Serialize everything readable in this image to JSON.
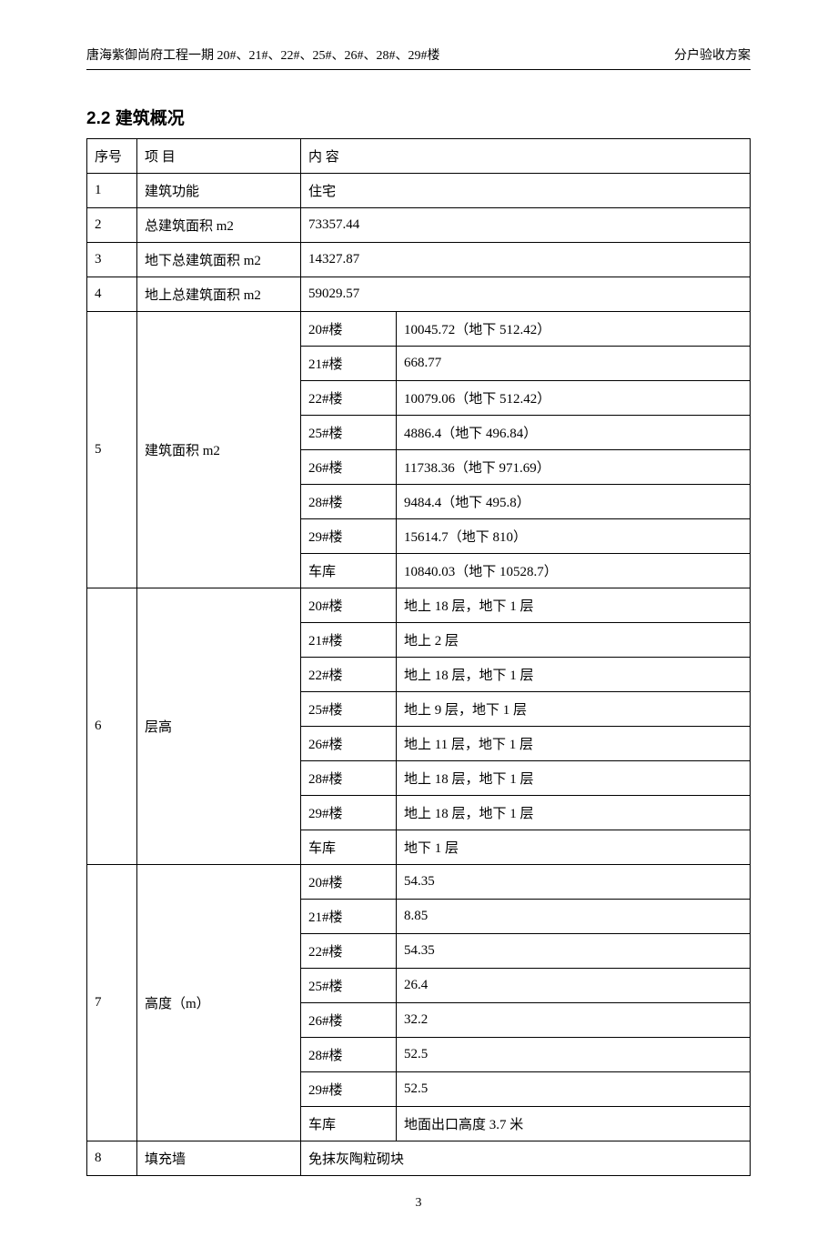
{
  "header": {
    "left": "唐海紫御尚府工程一期 20#、21#、22#、25#、26#、28#、29#楼",
    "right": "分户验收方案"
  },
  "section_title": "2.2 建筑概况",
  "table": {
    "col_headers": {
      "seq": "序号",
      "item": "项 目",
      "content": "内  容"
    },
    "rows_simple": [
      {
        "seq": "1",
        "item": "建筑功能",
        "content": "住宅"
      },
      {
        "seq": "2",
        "item": "总建筑面积 m2",
        "content": "73357.44"
      },
      {
        "seq": "3",
        "item": "地下总建筑面积 m2",
        "content": "14327.87"
      },
      {
        "seq": "4",
        "item": "地上总建筑面积 m2",
        "content": "59029.57"
      }
    ],
    "group_5": {
      "seq": "5",
      "item": "建筑面积 m2",
      "subs": [
        {
          "k": "20#楼",
          "v": "10045.72（地下 512.42）"
        },
        {
          "k": "21#楼",
          "v": "668.77"
        },
        {
          "k": "22#楼",
          "v": "10079.06（地下 512.42）"
        },
        {
          "k": "25#楼",
          "v": "4886.4（地下 496.84）"
        },
        {
          "k": "26#楼",
          "v": "11738.36（地下 971.69）"
        },
        {
          "k": "28#楼",
          "v": "9484.4（地下 495.8）"
        },
        {
          "k": "29#楼",
          "v": "15614.7（地下 810）"
        },
        {
          "k": "车库",
          "v": "10840.03（地下 10528.7）"
        }
      ]
    },
    "group_6": {
      "seq": "6",
      "item": "层高",
      "subs": [
        {
          "k": "20#楼",
          "v": "地上 18 层，地下 1 层"
        },
        {
          "k": "21#楼",
          "v": "地上 2 层"
        },
        {
          "k": "22#楼",
          "v": "地上 18 层，地下 1 层"
        },
        {
          "k": "25#楼",
          "v": "地上 9 层，地下 1 层"
        },
        {
          "k": "26#楼",
          "v": "地上 11 层，地下 1 层"
        },
        {
          "k": "28#楼",
          "v": "地上 18 层，地下 1 层"
        },
        {
          "k": "29#楼",
          "v": "地上 18 层，地下 1 层"
        },
        {
          "k": "车库",
          "v": "地下 1 层"
        }
      ]
    },
    "group_7": {
      "seq": "7",
      "item": "高度（m）",
      "subs": [
        {
          "k": "20#楼",
          "v": "54.35"
        },
        {
          "k": "21#楼",
          "v": "8.85"
        },
        {
          "k": "22#楼",
          "v": "54.35"
        },
        {
          "k": "25#楼",
          "v": "26.4"
        },
        {
          "k": "26#楼",
          "v": "32.2"
        },
        {
          "k": "28#楼",
          "v": "52.5"
        },
        {
          "k": "29#楼",
          "v": "52.5"
        },
        {
          "k": "车库",
          "v": "地面出口高度 3.7 米"
        }
      ]
    },
    "row_8": {
      "seq": "8",
      "item": "填充墙",
      "content": "免抹灰陶粒砌块"
    }
  },
  "page_number": "3"
}
